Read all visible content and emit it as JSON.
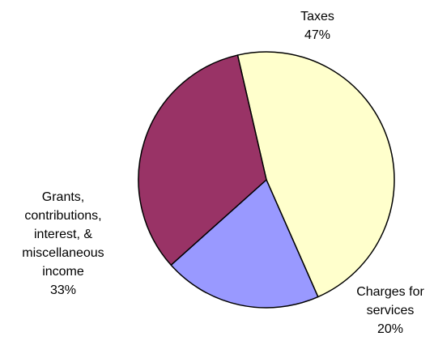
{
  "chart_data": {
    "type": "pie",
    "title": "",
    "slices": [
      {
        "label_lines": [
          "Taxes"
        ],
        "value": 47,
        "pct_label": "47%",
        "color": "#ffffcc"
      },
      {
        "label_lines": [
          "Charges for",
          "services"
        ],
        "value": 20,
        "pct_label": "20%",
        "color": "#9999ff"
      },
      {
        "label_lines": [
          "Grants,",
          "contributions,",
          "interest, &",
          "miscellaneous",
          "income"
        ],
        "value": 33,
        "pct_label": "33%",
        "color": "#993366"
      }
    ],
    "legend": "none",
    "slice_outline": "#000000"
  }
}
